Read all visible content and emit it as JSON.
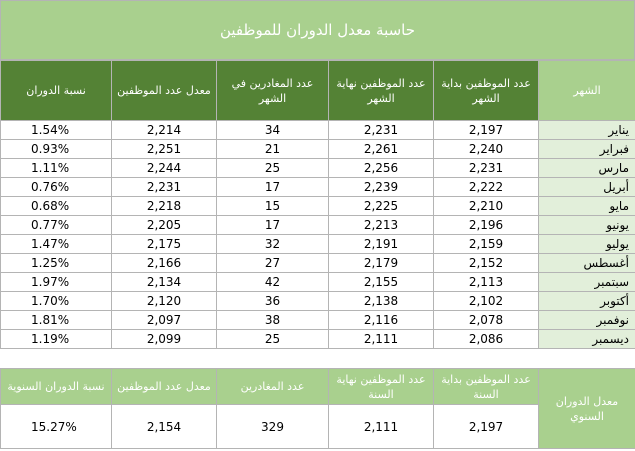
{
  "title": "حاسبة معدل الدوران للموظفين",
  "headers": {
    "month": "الشهر",
    "start": "عدد الموظفين بداية الشهر",
    "end": "عدد الموظفين نهاية الشهر",
    "leavers": "عدد المغادرين في الشهر",
    "avg": "معدل عدد الموظفين",
    "rate": "نسبة الدوران"
  },
  "rows": [
    {
      "month": "يناير",
      "start": "2,197",
      "end": "2,231",
      "leavers": "34",
      "avg": "2,214",
      "rate": "1.54%"
    },
    {
      "month": "فبراير",
      "start": "2,240",
      "end": "2,261",
      "leavers": "21",
      "avg": "2,251",
      "rate": "0.93%"
    },
    {
      "month": "مارس",
      "start": "2,231",
      "end": "2,256",
      "leavers": "25",
      "avg": "2,244",
      "rate": "1.11%"
    },
    {
      "month": "أبريل",
      "start": "2,222",
      "end": "2,239",
      "leavers": "17",
      "avg": "2,231",
      "rate": "0.76%"
    },
    {
      "month": "مايو",
      "start": "2,210",
      "end": "2,225",
      "leavers": "15",
      "avg": "2,218",
      "rate": "0.68%"
    },
    {
      "month": "يونيو",
      "start": "2,196",
      "end": "2,213",
      "leavers": "17",
      "avg": "2,205",
      "rate": "0.77%"
    },
    {
      "month": "يوليو",
      "start": "2,159",
      "end": "2,191",
      "leavers": "32",
      "avg": "2,175",
      "rate": "1.47%"
    },
    {
      "month": "أغسطس",
      "start": "2,152",
      "end": "2,179",
      "leavers": "27",
      "avg": "2,166",
      "rate": "1.25%"
    },
    {
      "month": "سبتمبر",
      "start": "2,113",
      "end": "2,155",
      "leavers": "42",
      "avg": "2,134",
      "rate": "1.97%"
    },
    {
      "month": "أكتوبر",
      "start": "2,102",
      "end": "2,138",
      "leavers": "36",
      "avg": "2,120",
      "rate": "1.70%"
    },
    {
      "month": "نوفمبر",
      "start": "2,078",
      "end": "2,116",
      "leavers": "38",
      "avg": "2,097",
      "rate": "1.81%"
    },
    {
      "month": "ديسمبر",
      "start": "2,086",
      "end": "2,111",
      "leavers": "25",
      "avg": "2,099",
      "rate": "1.19%"
    }
  ],
  "annual": {
    "label": "معدل الدوران السنوي",
    "headers": {
      "start": "عدد الموظفين بداية السنة",
      "end": "عدد الموظفين نهاية السنة",
      "leavers": "عدد المغادرين",
      "avg": "معدل عدد الموظفين",
      "rate": "نسبة الدوران السنوية"
    },
    "values": {
      "start": "2,197",
      "end": "2,111",
      "leavers": "329",
      "avg": "2,154",
      "rate": "15.27%"
    }
  },
  "colors": {
    "header_dark": "#548235",
    "header_light": "#a9d08e",
    "month_cell": "#e2efda",
    "grid": "#b4b4b4"
  }
}
